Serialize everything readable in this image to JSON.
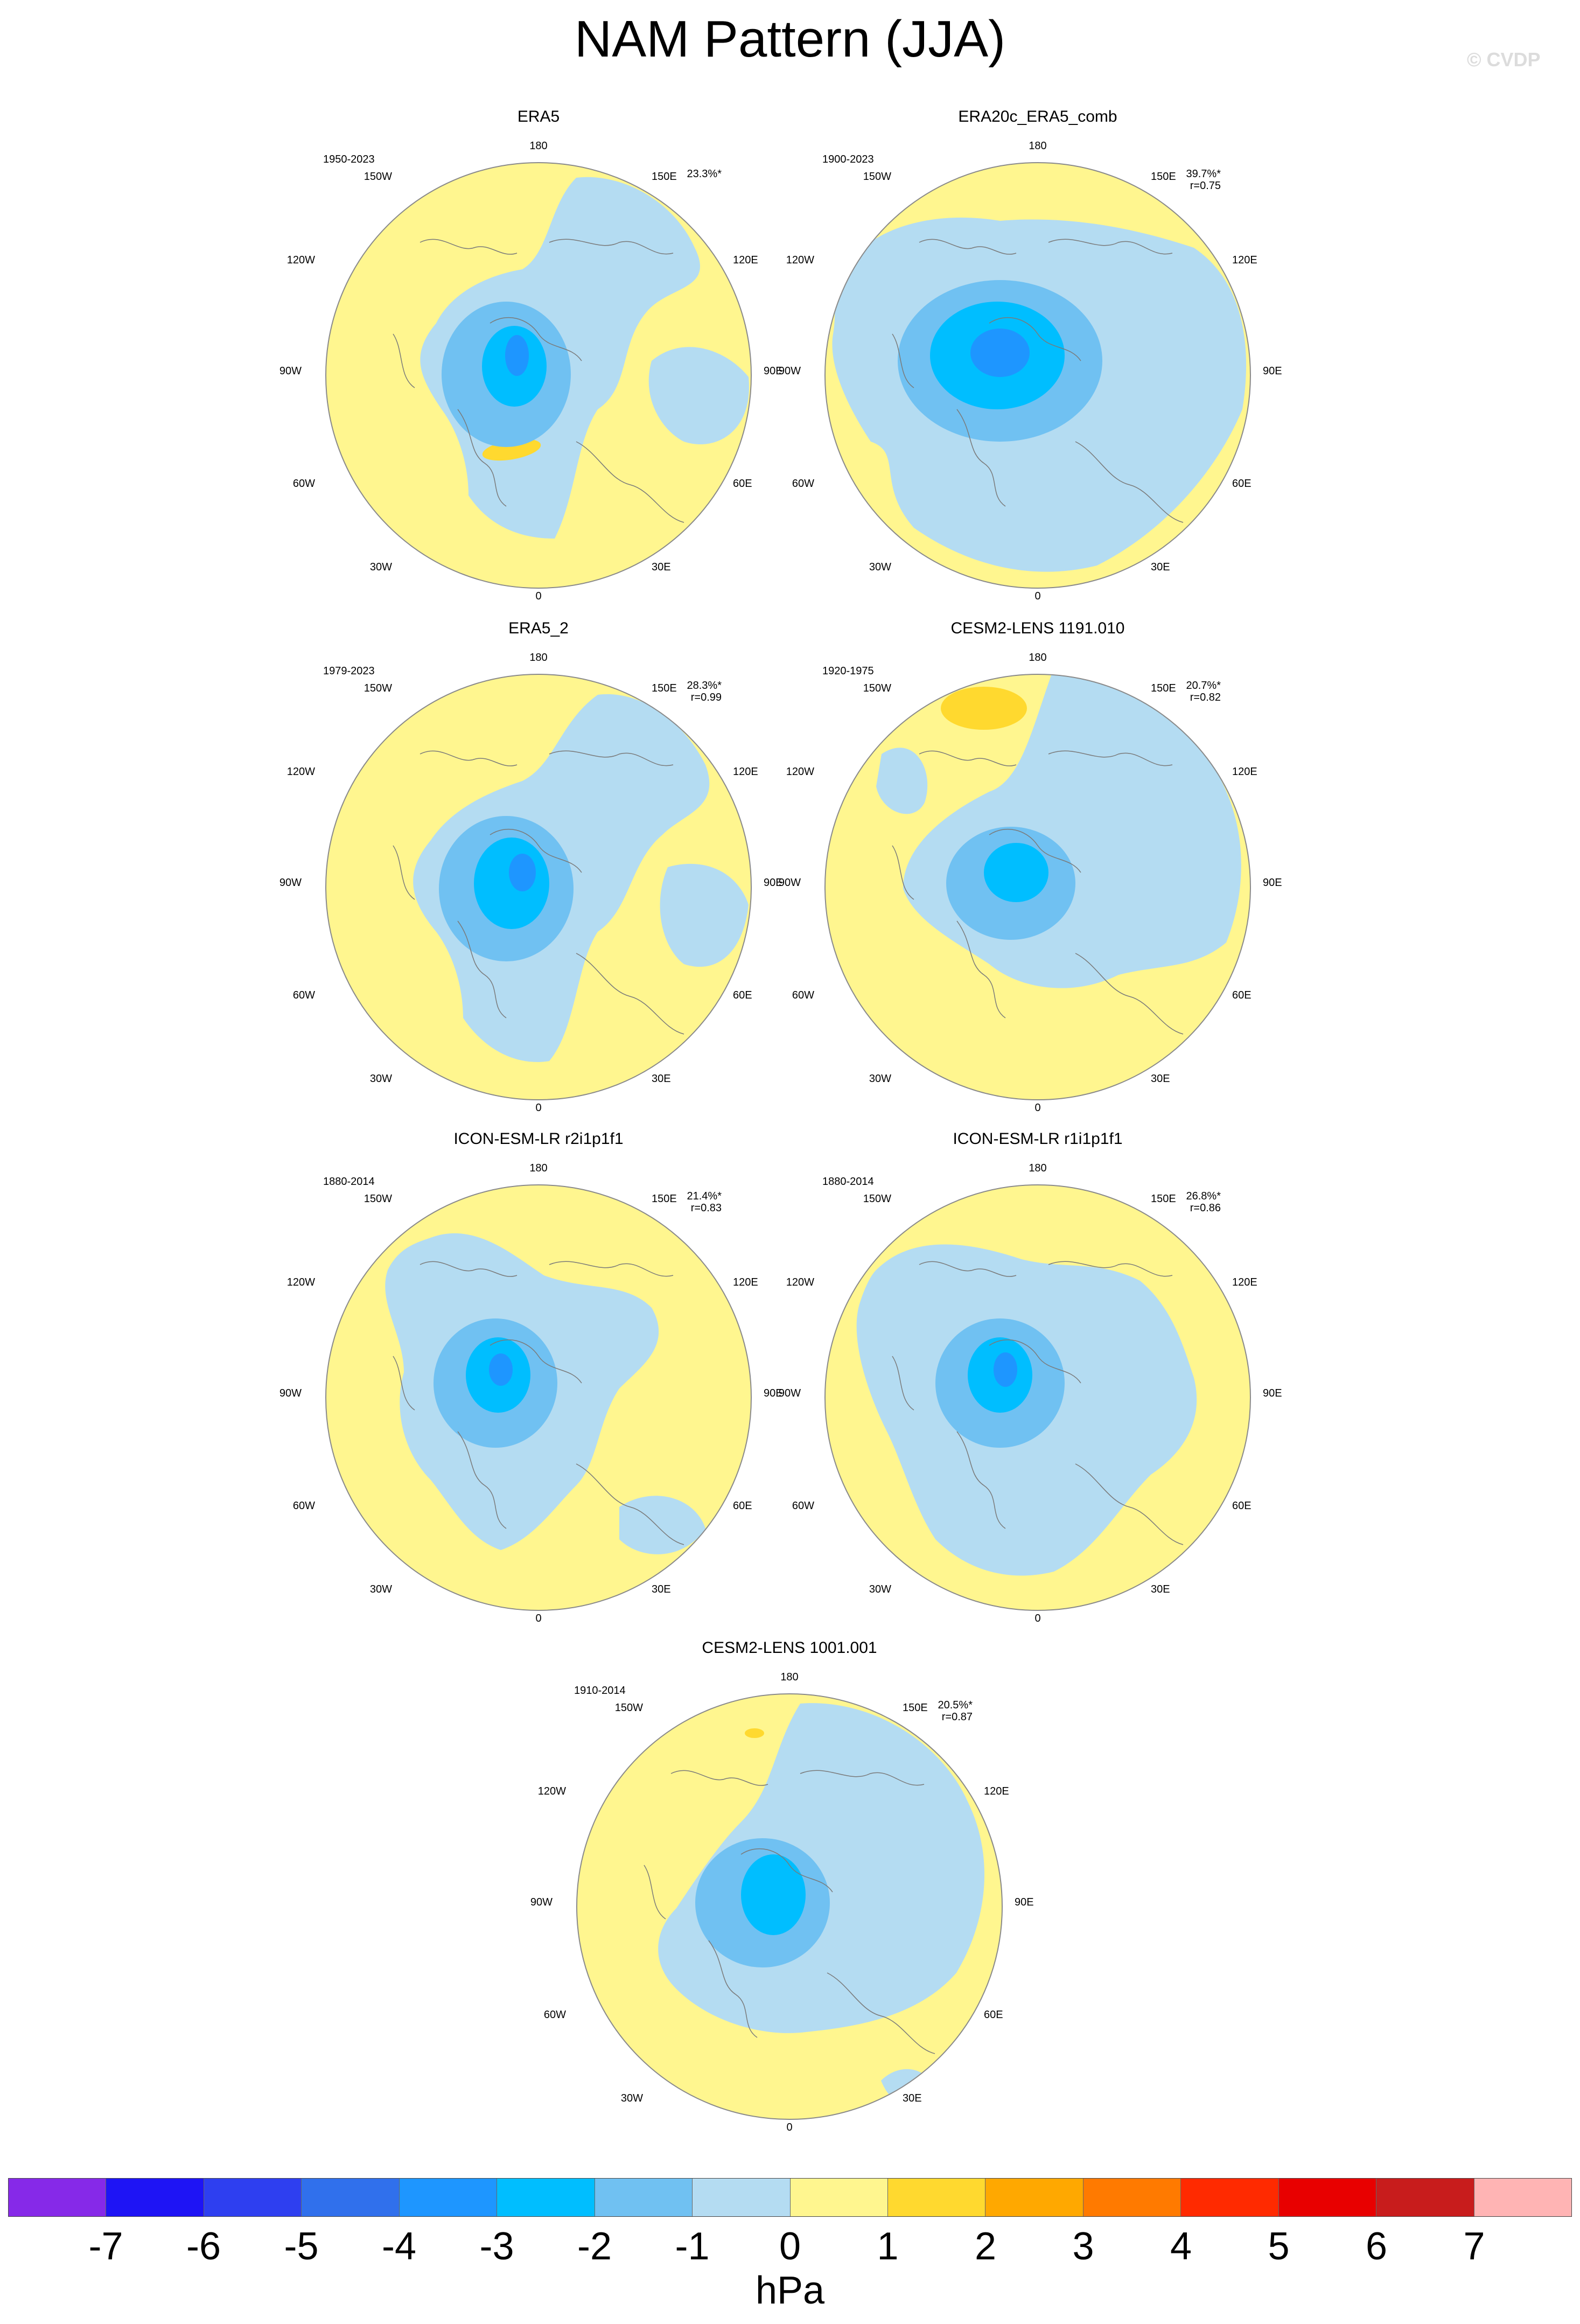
{
  "figure": {
    "title": "NAM Pattern (JJA)",
    "watermark": "© CVDP",
    "units": "hPa"
  },
  "colors": {
    "zero_to_one": "#fff68f",
    "one_to_two": "#ffd92f",
    "minus_one_to_zero": "#b4dcf2",
    "minus_two_to_minus_one": "#70c1f2",
    "minus_three_to_minus_two": "#00beff",
    "minus_four_to_minus_three": "#1e96ff",
    "coastline": "#7a7a7a"
  },
  "longitude_labels": {
    "top": "180",
    "bottom": "0",
    "left": "90W",
    "right": "90E",
    "upper_left_outer": "120W",
    "upper_left_inner": "150W",
    "upper_right_inner": "150E",
    "upper_right_outer": "120E",
    "lower_left_outer": "60W",
    "lower_left_inner": "30W",
    "lower_right_outer": "60E",
    "lower_right_inner": "30E"
  },
  "chart_data": {
    "type": "heatmap",
    "title": "NAM Pattern (JJA)",
    "projection": "north polar stereographic",
    "colorbar": {
      "label": "hPa",
      "levels": [
        "-7",
        "-6",
        "-5",
        "-4",
        "-3",
        "-2",
        "-1",
        "0",
        "1",
        "2",
        "3",
        "4",
        "5",
        "6",
        "7"
      ],
      "colors": [
        "#8629e8",
        "#1e14f5",
        "#2e3ff0",
        "#3070ec",
        "#1e96ff",
        "#00beff",
        "#70c1f2",
        "#b4dcf2",
        "#fff68f",
        "#ffd92f",
        "#ffa800",
        "#ff7a00",
        "#ff2a00",
        "#e80000",
        "#c81c1c",
        "#ffb4b4"
      ]
    },
    "panels": [
      {
        "name": "ERA5",
        "years": "1950-2023",
        "pct_variance": "23.3%*",
        "pattern_corr": "",
        "min_contour_hpa": -4,
        "max_contour_hpa": 2
      },
      {
        "name": "ERA20c_ERA5_comb",
        "years": "1900-2023",
        "pct_variance": "39.7%*",
        "pattern_corr": "r=0.75",
        "min_contour_hpa": -5,
        "max_contour_hpa": 1
      },
      {
        "name": "ERA5_2",
        "years": "1979-2023",
        "pct_variance": "28.3%*",
        "pattern_corr": "r=0.99",
        "min_contour_hpa": -4,
        "max_contour_hpa": 2
      },
      {
        "name": "CESM2-LENS 1191.010",
        "years": "1920-1975",
        "pct_variance": "20.7%*",
        "pattern_corr": "r=0.82",
        "min_contour_hpa": -3,
        "max_contour_hpa": 2
      },
      {
        "name": "ICON-ESM-LR r2i1p1f1",
        "years": "1880-2014",
        "pct_variance": "21.4%*",
        "pattern_corr": "r=0.83",
        "min_contour_hpa": -4,
        "max_contour_hpa": 1
      },
      {
        "name": "ICON-ESM-LR r1i1p1f1",
        "years": "1880-2014",
        "pct_variance": "26.8%*",
        "pattern_corr": "r=0.86",
        "min_contour_hpa": -4,
        "max_contour_hpa": 1
      },
      {
        "name": "CESM2-LENS 1001.001",
        "years": "1910-2014",
        "pct_variance": "20.5%*",
        "pattern_corr": "r=0.87",
        "min_contour_hpa": -3,
        "max_contour_hpa": 2
      }
    ]
  }
}
